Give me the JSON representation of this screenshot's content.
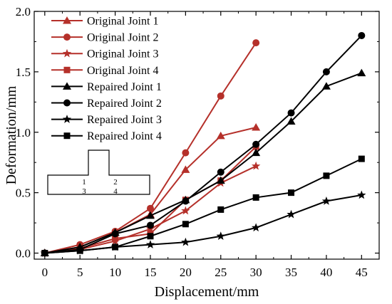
{
  "chart_data": {
    "type": "line",
    "xlabel": "Displacement/mm",
    "ylabel": "Deformation/mm",
    "xlim": [
      -1.5,
      47.5
    ],
    "ylim": [
      -0.05,
      2.0
    ],
    "xticks": [
      "0",
      "5",
      "10",
      "15",
      "20",
      "25",
      "30",
      "35",
      "40",
      "45"
    ],
    "yticks": [
      "0.0",
      "0.5",
      "1.0",
      "1.5",
      "2.0"
    ],
    "legend_position": "top-left",
    "series": [
      {
        "name": "Original Joint 1",
        "color": "#b5302a",
        "marker": "triangle",
        "x": [
          0,
          5,
          10,
          15,
          20,
          25,
          30
        ],
        "y": [
          0.0,
          0.05,
          0.17,
          0.32,
          0.69,
          0.97,
          1.04
        ]
      },
      {
        "name": "Original Joint 2",
        "color": "#b5302a",
        "marker": "circle",
        "x": [
          0,
          5,
          10,
          15,
          20,
          25,
          30
        ],
        "y": [
          0.0,
          0.07,
          0.18,
          0.37,
          0.83,
          1.3,
          1.74
        ]
      },
      {
        "name": "Original Joint 3",
        "color": "#b5302a",
        "marker": "star",
        "x": [
          0,
          5,
          10,
          15,
          20,
          25,
          30
        ],
        "y": [
          0.0,
          0.03,
          0.1,
          0.2,
          0.35,
          0.58,
          0.72
        ]
      },
      {
        "name": "Original Joint 4",
        "color": "#b5302a",
        "marker": "square",
        "x": [
          0,
          5,
          10,
          15,
          20,
          25,
          30
        ],
        "y": [
          0.0,
          0.04,
          0.12,
          0.16,
          0.44,
          0.6,
          0.88
        ]
      },
      {
        "name": "Repaired Joint 1",
        "color": "#000000",
        "marker": "triangle",
        "x": [
          0,
          5,
          10,
          15,
          20,
          25,
          30,
          35,
          40,
          45
        ],
        "y": [
          0.0,
          0.05,
          0.17,
          0.31,
          0.44,
          0.6,
          0.83,
          1.09,
          1.38,
          1.49
        ]
      },
      {
        "name": "Repaired Joint 2",
        "color": "#000000",
        "marker": "circle",
        "x": [
          0,
          5,
          10,
          15,
          20,
          25,
          30,
          35,
          40,
          45
        ],
        "y": [
          0.0,
          0.03,
          0.16,
          0.23,
          0.43,
          0.67,
          0.9,
          1.16,
          1.5,
          1.8
        ]
      },
      {
        "name": "Repaired Joint 3",
        "color": "#000000",
        "marker": "star",
        "x": [
          0,
          5,
          10,
          15,
          20,
          25,
          30,
          35,
          40,
          45
        ],
        "y": [
          0.0,
          0.02,
          0.05,
          0.07,
          0.09,
          0.14,
          0.21,
          0.32,
          0.43,
          0.48
        ]
      },
      {
        "name": "Repaired Joint 4",
        "color": "#000000",
        "marker": "square",
        "x": [
          0,
          5,
          10,
          15,
          20,
          25,
          30,
          35,
          40,
          45
        ],
        "y": [
          0.0,
          0.02,
          0.05,
          0.14,
          0.24,
          0.36,
          0.46,
          0.5,
          0.64,
          0.78
        ]
      }
    ],
    "inset": {
      "description_labels": [
        "1",
        "2",
        "3",
        "4"
      ]
    }
  }
}
